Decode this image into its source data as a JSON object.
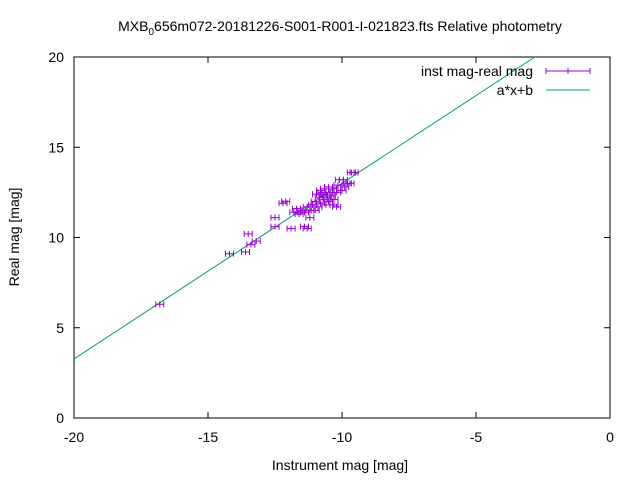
{
  "chart_data": {
    "type": "scatter",
    "title_main": "MXB",
    "title_sub": "0",
    "title_rest": "656m072-20181226-S001-R001-I-021823.fts Relative photometry",
    "xlabel": "Instrument mag [mag]",
    "ylabel": "Real mag [mag]",
    "xlim": [
      -20,
      0
    ],
    "ylim": [
      0,
      20
    ],
    "xticks": [
      -20,
      -15,
      -10,
      -5,
      0
    ],
    "yticks": [
      0,
      5,
      10,
      15,
      20
    ],
    "grid": false,
    "legend_position": "top-right",
    "series": [
      {
        "name": "inst mag-real mag",
        "kind": "points-with-xerror",
        "color": "#9400d3",
        "xerr": 0.15,
        "points": [
          [
            -16.8,
            6.3
          ],
          [
            -14.2,
            9.1
          ],
          [
            -13.6,
            9.2
          ],
          [
            -13.5,
            10.2
          ],
          [
            -13.4,
            9.6
          ],
          [
            -13.2,
            9.8
          ],
          [
            -12.5,
            10.6
          ],
          [
            -12.5,
            11.1
          ],
          [
            -12.2,
            11.9
          ],
          [
            -12.1,
            12.0
          ],
          [
            -11.9,
            10.5
          ],
          [
            -11.8,
            11.4
          ],
          [
            -11.7,
            11.6
          ],
          [
            -11.6,
            11.3
          ],
          [
            -11.5,
            11.5
          ],
          [
            -11.4,
            11.4
          ],
          [
            -11.4,
            10.6
          ],
          [
            -11.3,
            10.5
          ],
          [
            -11.3,
            11.7
          ],
          [
            -11.2,
            11.1
          ],
          [
            -11.2,
            11.5
          ],
          [
            -11.1,
            11.8
          ],
          [
            -11.0,
            11.5
          ],
          [
            -11.0,
            12.0
          ],
          [
            -10.95,
            12.4
          ],
          [
            -10.9,
            11.7
          ],
          [
            -10.85,
            12.2
          ],
          [
            -10.8,
            12.6
          ],
          [
            -10.8,
            11.9
          ],
          [
            -10.75,
            12.5
          ],
          [
            -10.7,
            12.1
          ],
          [
            -10.7,
            12.3
          ],
          [
            -10.65,
            12.7
          ],
          [
            -10.6,
            12.4
          ],
          [
            -10.6,
            11.8
          ],
          [
            -10.55,
            12.2
          ],
          [
            -10.5,
            12.8
          ],
          [
            -10.5,
            12.0
          ],
          [
            -10.45,
            12.5
          ],
          [
            -10.4,
            12.3
          ],
          [
            -10.35,
            12.7
          ],
          [
            -10.3,
            12.1
          ],
          [
            -10.3,
            11.8
          ],
          [
            -10.2,
            11.7
          ],
          [
            -10.2,
            12.5
          ],
          [
            -10.15,
            12.9
          ],
          [
            -10.1,
            13.2
          ],
          [
            -10.0,
            12.6
          ],
          [
            -9.95,
            13.2
          ],
          [
            -9.9,
            12.8
          ],
          [
            -9.8,
            13.0
          ],
          [
            -9.7,
            13.0
          ],
          [
            -9.65,
            13.6
          ],
          [
            -9.55,
            13.6
          ]
        ]
      },
      {
        "name": "a*x+b",
        "kind": "line",
        "color": "#009e73",
        "slope": 0.973,
        "intercept": 22.73
      }
    ]
  }
}
